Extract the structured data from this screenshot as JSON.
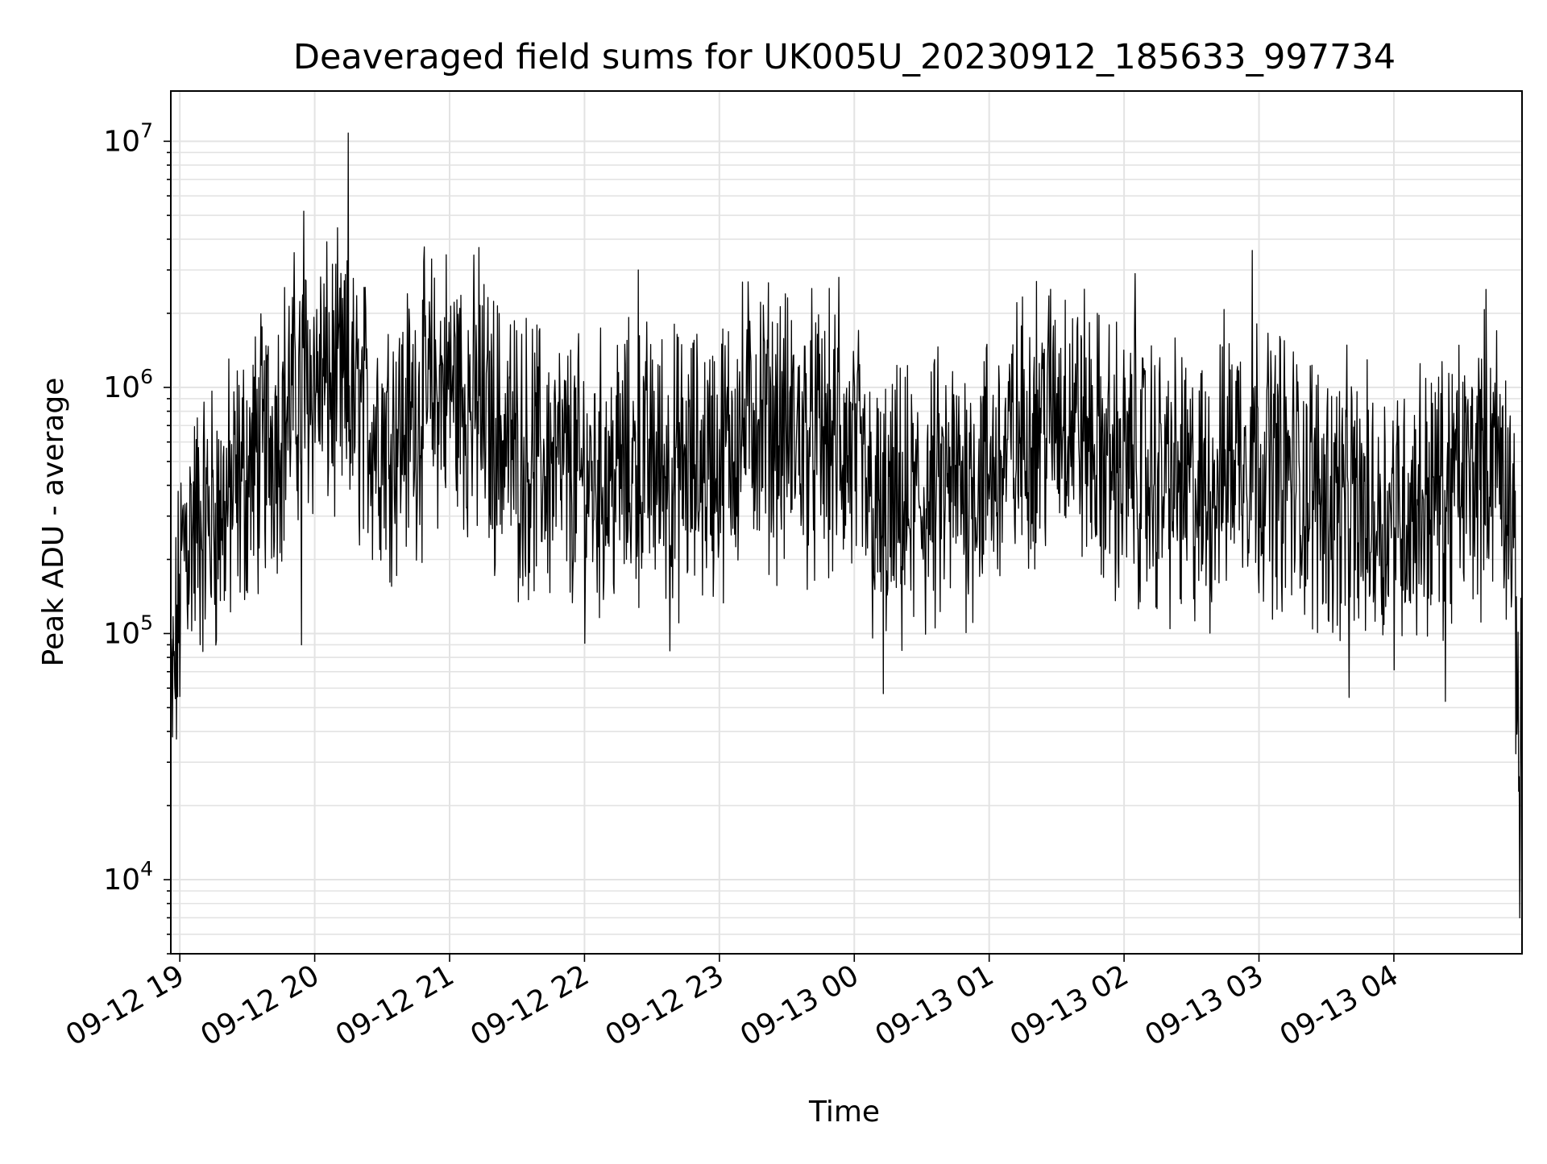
{
  "chart_data": {
    "type": "line",
    "title": "Deaveraged field sums for UK005U_20230912_185633_997734",
    "xlabel": "Time",
    "ylabel": "Peak ADU - average",
    "yscale": "log",
    "ylim": [
      5000,
      16000000
    ],
    "xlim": [
      "2023-09-12 18:56",
      "2023-09-13 04:57"
    ],
    "grid": true,
    "line_color": "#000000",
    "x_ticks": [
      "09-12 19",
      "09-12 20",
      "09-12 21",
      "09-12 22",
      "09-12 23",
      "09-13 00",
      "09-13 01",
      "09-13 02",
      "09-13 03",
      "09-13 04"
    ],
    "y_ticks": [
      {
        "base": "10",
        "exp": "4",
        "value": 10000
      },
      {
        "base": "10",
        "exp": "5",
        "value": 100000
      },
      {
        "base": "10",
        "exp": "6",
        "value": 1000000
      },
      {
        "base": "10",
        "exp": "7",
        "value": 10000000
      }
    ],
    "series": [
      {
        "x": [
          "2023-09-12 18:56",
          "2023-09-12 19:02",
          "2023-09-12 19:10",
          "2023-09-12 19:20",
          "2023-09-12 19:30",
          "2023-09-12 19:40",
          "2023-09-12 19:50",
          "2023-09-12 19:58",
          "2023-09-12 20:10",
          "2023-09-12 20:20",
          "2023-09-12 20:30",
          "2023-09-12 20:40",
          "2023-09-12 20:50",
          "2023-09-12 21:00",
          "2023-09-12 21:15",
          "2023-09-12 21:30",
          "2023-09-12 21:45",
          "2023-09-12 22:00",
          "2023-09-12 22:15",
          "2023-09-12 22:30",
          "2023-09-12 22:45",
          "2023-09-12 23:00",
          "2023-09-12 23:15",
          "2023-09-12 23:30",
          "2023-09-12 23:45",
          "2023-09-13 00:00",
          "2023-09-13 00:10",
          "2023-09-13 00:20",
          "2023-09-13 00:35",
          "2023-09-13 00:50",
          "2023-09-13 01:05",
          "2023-09-13 01:20",
          "2023-09-13 01:35",
          "2023-09-13 01:50",
          "2023-09-13 02:05",
          "2023-09-13 02:20",
          "2023-09-13 02:35",
          "2023-09-13 02:50",
          "2023-09-13 03:05",
          "2023-09-13 03:20",
          "2023-09-13 03:35",
          "2023-09-13 03:50",
          "2023-09-13 04:05",
          "2023-09-13 04:20",
          "2023-09-13 04:35",
          "2023-09-13 04:45",
          "2023-09-13 04:52",
          "2023-09-13 04:57"
        ],
        "values": [
          40000,
          250000,
          280000,
          320000,
          450000,
          620000,
          900000,
          1100000,
          1000000,
          800000,
          650000,
          700000,
          900000,
          1050000,
          750000,
          550000,
          480000,
          420000,
          460000,
          500000,
          450000,
          520000,
          800000,
          650000,
          600000,
          520000,
          280000,
          300000,
          350000,
          420000,
          480000,
          750000,
          850000,
          520000,
          450000,
          420000,
          350000,
          600000,
          500000,
          400000,
          350000,
          300000,
          320000,
          380000,
          450000,
          600000,
          350000,
          25000
        ],
        "spikes": [
          {
            "x": "2023-09-12 19:55",
            "value": 5200000
          },
          {
            "x": "2023-09-12 20:15",
            "value": 10800000
          },
          {
            "x": "2023-09-12 21:13",
            "value": 3700000
          },
          {
            "x": "2023-09-12 22:24",
            "value": 3000000
          },
          {
            "x": "2023-09-12 23:53",
            "value": 2800000
          },
          {
            "x": "2023-09-13 02:05",
            "value": 2900000
          },
          {
            "x": "2023-09-13 02:57",
            "value": 3600000
          },
          {
            "x": "2023-09-13 04:41",
            "value": 2500000
          }
        ],
        "dips": [
          {
            "x": "2023-09-12 19:54",
            "value": 90000
          },
          {
            "x": "2023-09-12 22:38",
            "value": 85000
          },
          {
            "x": "2023-09-13 00:13",
            "value": 57000
          },
          {
            "x": "2023-09-13 03:40",
            "value": 55000
          },
          {
            "x": "2023-09-13 04:23",
            "value": 53000
          },
          {
            "x": "2023-09-13 04:56",
            "value": 7000
          }
        ]
      }
    ]
  }
}
